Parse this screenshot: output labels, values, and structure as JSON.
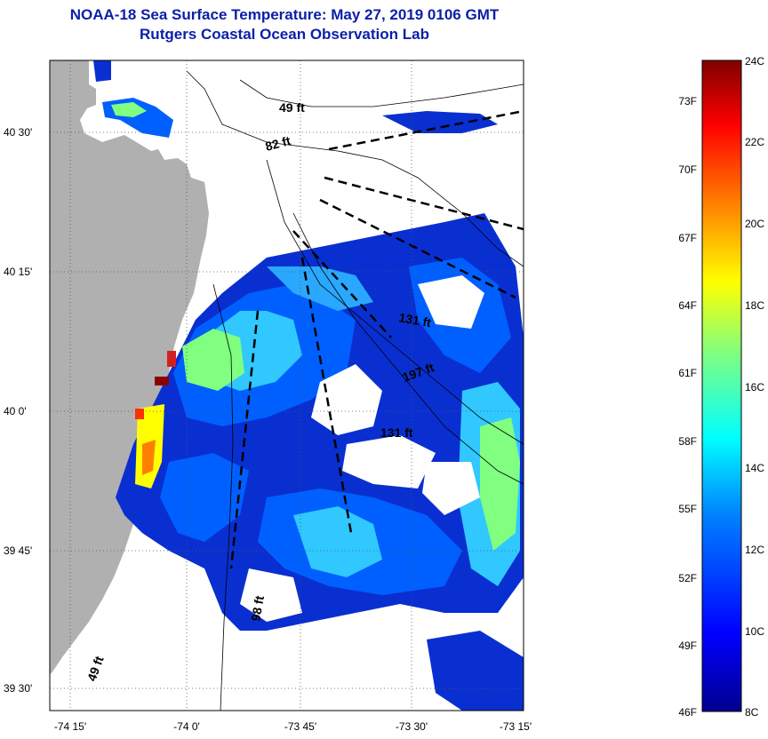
{
  "title": {
    "line1": "NOAA-18 Sea Surface Temperature:  May 27, 2019 0106 GMT",
    "line2": "Rutgers Coastal Ocean Observation Lab"
  },
  "map": {
    "lat_labels": [
      "40 30'",
      "40 15'",
      "40 0'",
      "39 45'",
      "39 30'"
    ],
    "lon_labels": [
      "-74 15'",
      "-74 0'",
      "-73 45'",
      "-73 30'",
      "-73 15'"
    ],
    "depth_labels": [
      "49 ft",
      "82 ft",
      "131 ft",
      "197 ft",
      "131 ft",
      "98 ft",
      "49 ft"
    ],
    "colors": {
      "land": "#b0b0b0",
      "sea_no_data": "#ffffff"
    }
  },
  "colorbar": {
    "fahrenheit_labels": [
      "73F",
      "70F",
      "67F",
      "64F",
      "61F",
      "58F",
      "55F",
      "52F",
      "49F",
      "46F"
    ],
    "celsius_labels": [
      "24C",
      "22C",
      "20C",
      "18C",
      "16C",
      "14C",
      "12C",
      "10C",
      "8C"
    ],
    "range_c": [
      8,
      24
    ],
    "colors": [
      "#00008f",
      "#0000ff",
      "#0080ff",
      "#00ffff",
      "#80ff80",
      "#ffff00",
      "#ff8000",
      "#ff0000",
      "#800000"
    ]
  }
}
